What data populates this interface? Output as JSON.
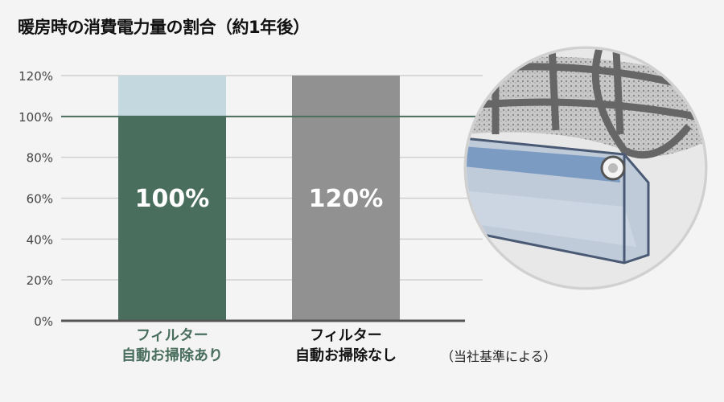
{
  "chart_data": {
    "type": "bar",
    "title": "暖房時の消費電力量の割合（約1年後）",
    "categories": [
      "フィルター\n自動お掃除あり",
      "フィルター\n自動お掃除なし"
    ],
    "category_lines": [
      [
        "フィルター",
        "自動お掃除あり"
      ],
      [
        "フィルター",
        "自動お掃除なし"
      ]
    ],
    "values": [
      100,
      120
    ],
    "data_labels": [
      "100%",
      "120%"
    ],
    "reference_value": 120,
    "ylim": [
      0,
      120
    ],
    "yticks": [
      "0%",
      "20%",
      "40%",
      "60%",
      "80%",
      "100%",
      "120%"
    ],
    "highlight_line": 100,
    "grid": true,
    "note": "（当社基準による）",
    "colors": {
      "bar1": "#4a6e5e",
      "bar1_gap": "#c4d9df",
      "bar2": "#919191",
      "category1": "#4a6e5e",
      "category2": "#111111",
      "grid": "#cfcfcf",
      "highlight": "#4a6e5e",
      "axis": "#555555"
    }
  },
  "illustration": {
    "icon": "air-filter-cleaning-unit-image"
  }
}
